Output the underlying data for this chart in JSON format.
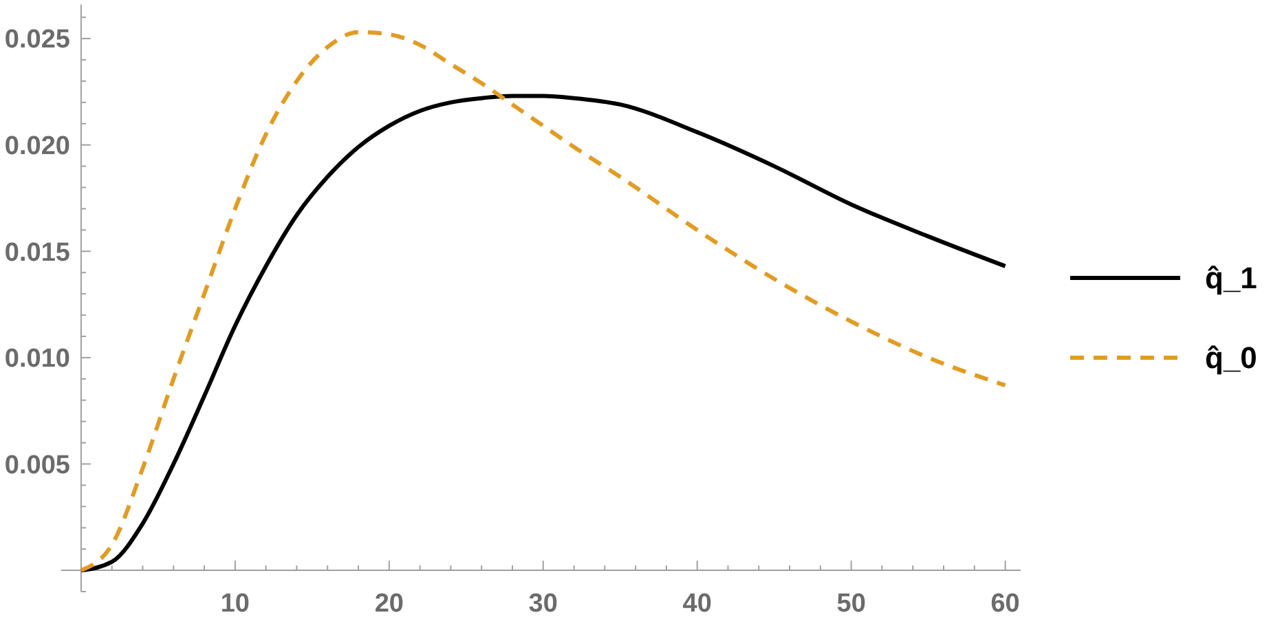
{
  "chart_data": {
    "type": "line",
    "x": [
      0,
      2,
      4,
      6,
      8,
      10,
      12,
      14,
      16,
      18,
      20,
      22,
      24,
      26,
      28,
      30,
      32,
      35,
      40,
      45,
      50,
      55,
      60
    ],
    "series": [
      {
        "name": "q̂_1",
        "color": "#000000",
        "line_style": "solid",
        "values": [
          0,
          0.0004,
          0.0022,
          0.005,
          0.0082,
          0.0115,
          0.0143,
          0.0167,
          0.0185,
          0.0199,
          0.0209,
          0.0216,
          0.022,
          0.0222,
          0.0223,
          0.0223,
          0.0222,
          0.0219,
          0.0206,
          0.019,
          0.0172,
          0.0157,
          0.0143
        ]
      },
      {
        "name": "q̂_0",
        "color": "#e19c24",
        "line_style": "dashed",
        "values": [
          0,
          0.0012,
          0.0048,
          0.009,
          0.013,
          0.017,
          0.0205,
          0.023,
          0.0246,
          0.0253,
          0.0252,
          0.0247,
          0.0238,
          0.0229,
          0.0219,
          0.0209,
          0.0199,
          0.0185,
          0.016,
          0.0137,
          0.0117,
          0.01,
          0.0087
        ]
      }
    ],
    "xlim": [
      -1.3,
      61
    ],
    "ylim": [
      -0.001,
      0.0266
    ],
    "xticks": [
      {
        "value": 2,
        "label": null
      },
      {
        "value": 4,
        "label": null
      },
      {
        "value": 6,
        "label": null
      },
      {
        "value": 8,
        "label": null
      },
      10,
      {
        "value": 12,
        "label": null
      },
      {
        "value": 14,
        "label": null
      },
      {
        "value": 16,
        "label": null
      },
      {
        "value": 18,
        "label": null
      },
      20,
      {
        "value": 22,
        "label": null
      },
      {
        "value": 24,
        "label": null
      },
      {
        "value": 26,
        "label": null
      },
      {
        "value": 28,
        "label": null
      },
      30,
      {
        "value": 32,
        "label": null
      },
      {
        "value": 34,
        "label": null
      },
      {
        "value": 36,
        "label": null
      },
      {
        "value": 38,
        "label": null
      },
      40,
      {
        "value": 42,
        "label": null
      },
      {
        "value": 44,
        "label": null
      },
      {
        "value": 46,
        "label": null
      },
      {
        "value": 48,
        "label": null
      },
      50,
      {
        "value": 52,
        "label": null
      },
      {
        "value": 54,
        "label": null
      },
      {
        "value": 56,
        "label": null
      },
      {
        "value": 58,
        "label": null
      },
      60
    ],
    "yticks": [
      {
        "value": -0.001,
        "label": null
      },
      {
        "value": 0.001,
        "label": null
      },
      {
        "value": 0.002,
        "label": null
      },
      {
        "value": 0.003,
        "label": null
      },
      {
        "value": 0.004,
        "label": null
      },
      {
        "value": 0.005,
        "label": "0.005"
      },
      {
        "value": 0.006,
        "label": null
      },
      {
        "value": 0.007,
        "label": null
      },
      {
        "value": 0.008,
        "label": null
      },
      {
        "value": 0.009,
        "label": null
      },
      {
        "value": 0.01,
        "label": "0.010"
      },
      {
        "value": 0.011,
        "label": null
      },
      {
        "value": 0.012,
        "label": null
      },
      {
        "value": 0.013,
        "label": null
      },
      {
        "value": 0.014,
        "label": null
      },
      {
        "value": 0.015,
        "label": "0.015"
      },
      {
        "value": 0.016,
        "label": null
      },
      {
        "value": 0.017,
        "label": null
      },
      {
        "value": 0.018,
        "label": null
      },
      {
        "value": 0.019,
        "label": null
      },
      {
        "value": 0.02,
        "label": "0.020"
      },
      {
        "value": 0.021,
        "label": null
      },
      {
        "value": 0.022,
        "label": null
      },
      {
        "value": 0.023,
        "label": null
      },
      {
        "value": 0.024,
        "label": null
      },
      {
        "value": 0.025,
        "label": "0.025"
      },
      {
        "value": 0.026,
        "label": null
      }
    ],
    "legend": "right",
    "marker": "none"
  }
}
